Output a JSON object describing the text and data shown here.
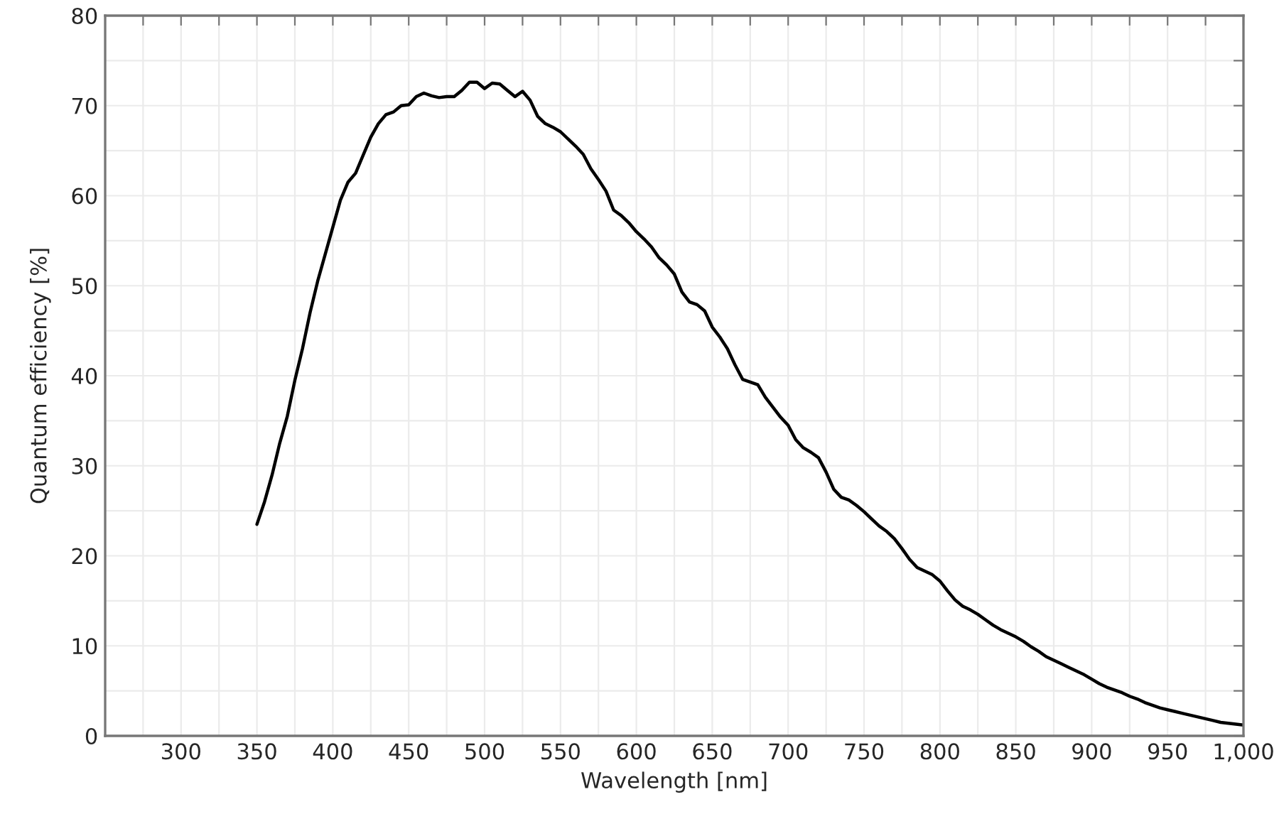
{
  "chart_data": {
    "type": "line",
    "xlabel": "Wavelength [nm]",
    "ylabel": "Quantum efficiency [%]",
    "x": [
      350,
      355,
      360,
      365,
      370,
      375,
      380,
      385,
      390,
      395,
      400,
      405,
      410,
      415,
      420,
      425,
      430,
      435,
      440,
      445,
      450,
      455,
      460,
      465,
      470,
      475,
      480,
      485,
      490,
      495,
      500,
      505,
      510,
      515,
      520,
      525,
      530,
      535,
      540,
      545,
      550,
      555,
      560,
      565,
      570,
      575,
      580,
      585,
      590,
      595,
      600,
      605,
      610,
      615,
      620,
      625,
      630,
      635,
      640,
      645,
      650,
      655,
      660,
      665,
      670,
      675,
      680,
      685,
      690,
      695,
      700,
      705,
      710,
      715,
      720,
      725,
      730,
      735,
      740,
      745,
      750,
      755,
      760,
      765,
      770,
      775,
      780,
      785,
      790,
      795,
      800,
      805,
      810,
      815,
      820,
      825,
      830,
      835,
      840,
      845,
      850,
      855,
      860,
      865,
      870,
      875,
      880,
      885,
      890,
      895,
      900,
      905,
      910,
      915,
      920,
      925,
      930,
      935,
      940,
      945,
      950,
      955,
      960,
      965,
      970,
      975,
      980,
      985,
      990,
      995,
      1000
    ],
    "series": [
      {
        "color": "#000000",
        "values": [
          23.5,
          26,
          29,
          32.5,
          35.5,
          39.5,
          43,
          47,
          50.5,
          53.5,
          56.5,
          59.5,
          61.5,
          62.5,
          64.5,
          66.5,
          68,
          69,
          69.3,
          70,
          70.1,
          71,
          71.4,
          71.1,
          70.9,
          71,
          71,
          71.7,
          72.6,
          72.6,
          71.9,
          72.5,
          72.4,
          71.7,
          71,
          71.6,
          70.6,
          68.8,
          68,
          67.6,
          67.1,
          66.3,
          65.5,
          64.6,
          63,
          61.8,
          60.5,
          58.4,
          57.8,
          57,
          56,
          55.2,
          54.3,
          53.1,
          52.3,
          51.3,
          49.3,
          48.2,
          47.9,
          47.2,
          45.4,
          44.3,
          43,
          41.2,
          39.6,
          39.3,
          39,
          37.6,
          36.5,
          35.4,
          34.5,
          32.9,
          32,
          31.5,
          30.9,
          29.3,
          27.4,
          26.5,
          26.2,
          25.6,
          24.9,
          24.1,
          23.3,
          22.7,
          21.9,
          20.8,
          19.6,
          18.7,
          18.3,
          17.9,
          17.2,
          16.1,
          15.1,
          14.4,
          14,
          13.5,
          12.9,
          12.3,
          11.8,
          11.4,
          11,
          10.5,
          9.9,
          9.4,
          8.8,
          8.4,
          8,
          7.6,
          7.2,
          6.8,
          6.3,
          5.8,
          5.4,
          5.1,
          4.8,
          4.4,
          4.1,
          3.7,
          3.4,
          3.1,
          2.9,
          2.7,
          2.5,
          2.3,
          2.1,
          1.9,
          1.7,
          1.5,
          1.4,
          1.3,
          1.2
        ]
      }
    ],
    "xlim": [
      250,
      1000
    ],
    "xticks": [
      {
        "value": 275,
        "label": null
      },
      300,
      {
        "value": 325,
        "label": null
      },
      350,
      {
        "value": 375,
        "label": null
      },
      400,
      {
        "value": 425,
        "label": null
      },
      450,
      {
        "value": 475,
        "label": null
      },
      500,
      {
        "value": 525,
        "label": null
      },
      550,
      {
        "value": 575,
        "label": null
      },
      600,
      {
        "value": 625,
        "label": null
      },
      650,
      {
        "value": 675,
        "label": null
      },
      700,
      {
        "value": 725,
        "label": null
      },
      750,
      {
        "value": 775,
        "label": null
      },
      800,
      {
        "value": 825,
        "label": null
      },
      850,
      {
        "value": 875,
        "label": null
      },
      900,
      {
        "value": 925,
        "label": null
      },
      950,
      {
        "value": 975,
        "label": null
      },
      {
        "value": 1000,
        "label": "1,000"
      }
    ],
    "ylim": [
      0,
      80
    ],
    "yticks": [
      0,
      {
        "value": 5,
        "label": null
      },
      10,
      {
        "value": 15,
        "label": null
      },
      20,
      {
        "value": 25,
        "label": null
      },
      30,
      {
        "value": 35,
        "label": null
      },
      40,
      {
        "value": 45,
        "label": null
      },
      50,
      {
        "value": 55,
        "label": null
      },
      60,
      {
        "value": 65,
        "label": null
      },
      70,
      {
        "value": 75,
        "label": null
      },
      80
    ],
    "grid": true,
    "line_style": "solid",
    "marker": "none"
  }
}
